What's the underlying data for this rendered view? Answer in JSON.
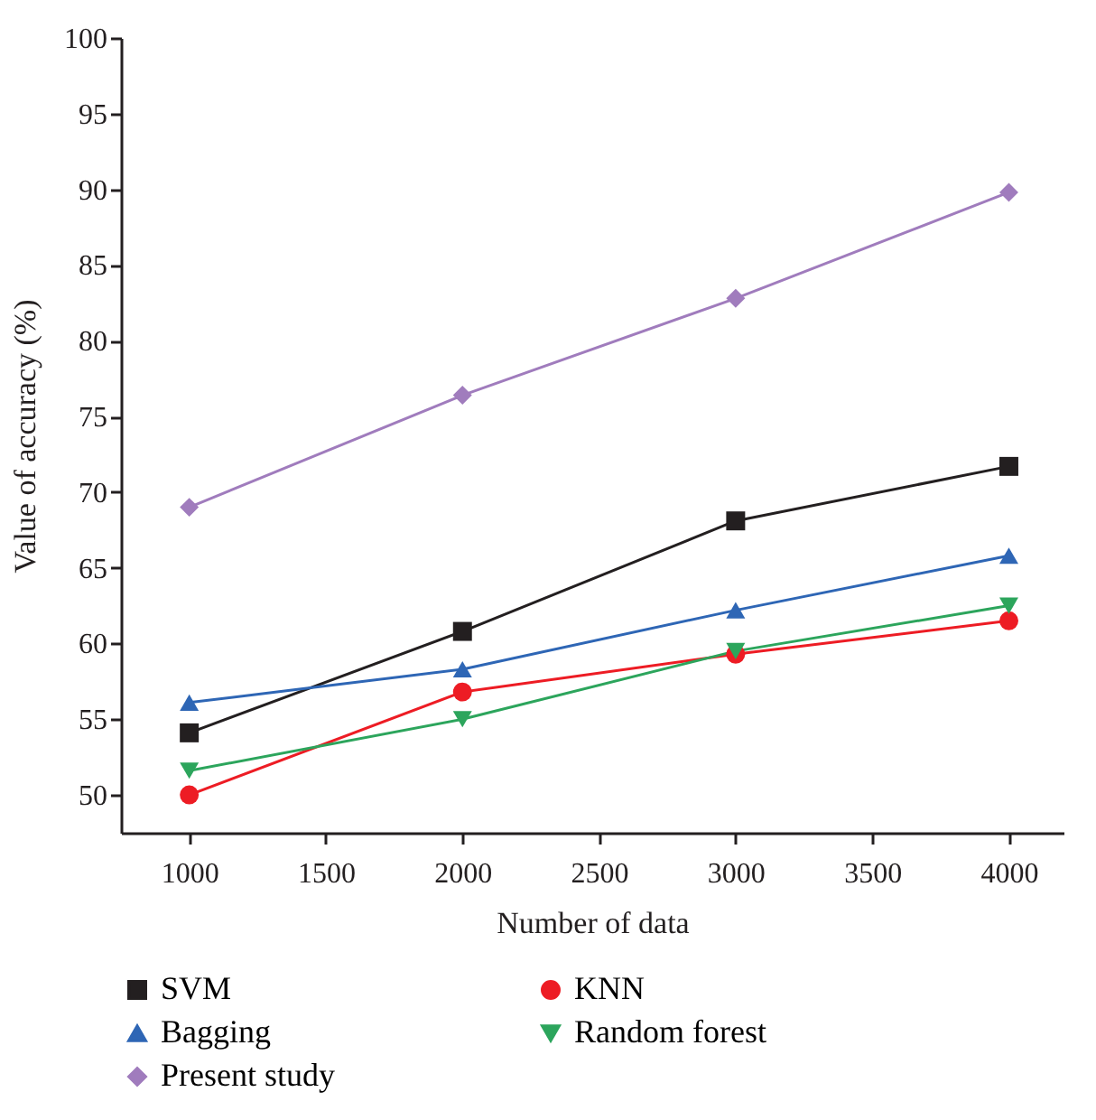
{
  "chart_data": {
    "type": "line",
    "xlabel": "Number of data",
    "ylabel": "Value of accuracy (%)",
    "x": [
      1000,
      2000,
      3000,
      4000
    ],
    "series": [
      {
        "name": "SVM",
        "color": "#231f20",
        "marker": "square",
        "values": [
          54.1,
          60.8,
          68.1,
          71.7
        ]
      },
      {
        "name": "KNN",
        "color": "#ed1c24",
        "marker": "circle",
        "values": [
          50.0,
          56.8,
          59.3,
          61.5
        ]
      },
      {
        "name": "Bagging",
        "color": "#2e66b5",
        "marker": "triangle",
        "values": [
          56.1,
          58.3,
          62.2,
          65.8
        ]
      },
      {
        "name": "Random forest",
        "color": "#2ca55c",
        "marker": "triangle-down",
        "values": [
          51.6,
          55.0,
          59.5,
          62.5
        ]
      },
      {
        "name": "Present study",
        "color": "#a07cbd",
        "marker": "diamond",
        "values": [
          69.0,
          76.4,
          82.8,
          89.8
        ]
      }
    ],
    "xlim": [
      750,
      4200
    ],
    "xticks": [
      1000,
      1500,
      2000,
      2500,
      3000,
      3500,
      4000
    ],
    "ylim": [
      47.5,
      100
    ],
    "yticks": [
      50,
      55,
      60,
      65,
      70,
      75,
      80,
      85,
      90,
      95,
      100
    ],
    "grid": false,
    "legend": "bottom",
    "line_style": "solid"
  }
}
